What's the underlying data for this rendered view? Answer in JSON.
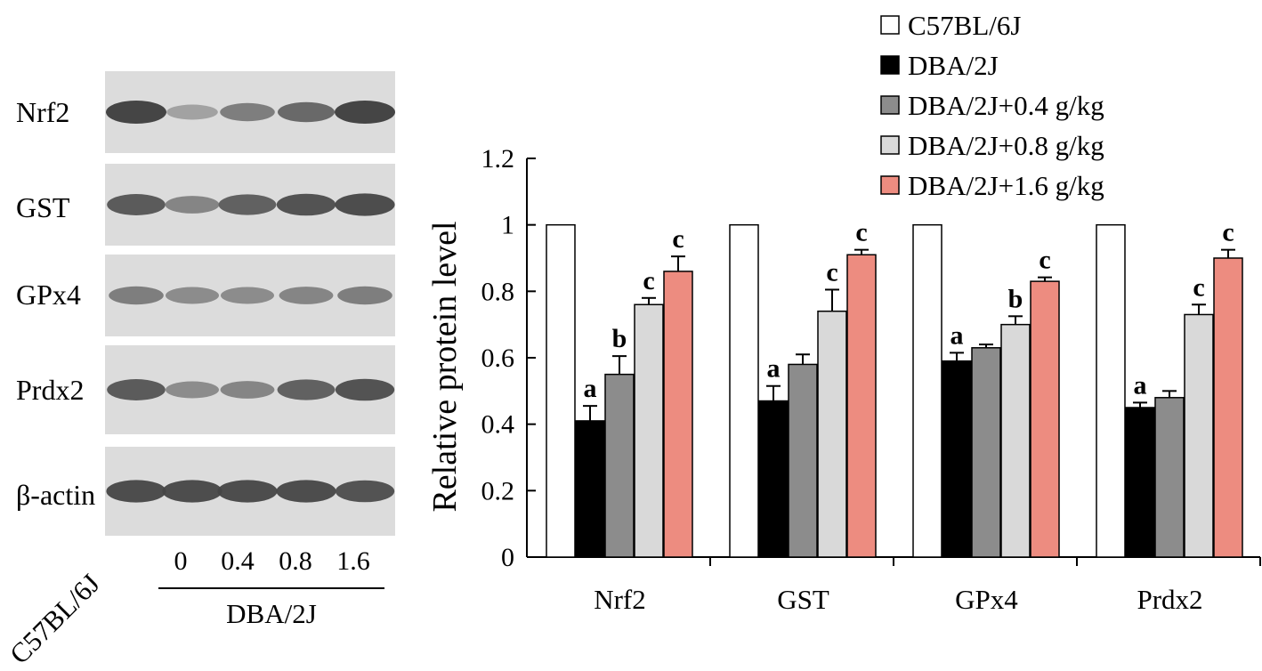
{
  "blots": {
    "rows": [
      {
        "label": "Nrf2",
        "intensity": [
          1.0,
          0.35,
          0.6,
          0.75,
          1.0
        ]
      },
      {
        "label": "GST",
        "intensity": [
          0.85,
          0.55,
          0.8,
          0.9,
          0.95
        ]
      },
      {
        "label": "GPx4",
        "intensity": [
          0.6,
          0.5,
          0.5,
          0.55,
          0.6
        ]
      },
      {
        "label": "Prdx2",
        "intensity": [
          0.85,
          0.5,
          0.55,
          0.8,
          0.9
        ]
      },
      {
        "label": "β-actin",
        "intensity": [
          0.95,
          0.95,
          0.95,
          0.95,
          0.9
        ]
      }
    ],
    "strain_label": "C57BL/6J",
    "lane_labels": [
      "0",
      "0.4",
      "0.8",
      "1.6"
    ],
    "group_label": "DBA/2J"
  },
  "chart_data": {
    "type": "bar",
    "ylabel": "Relative protein level",
    "ylim": [
      0,
      1.2
    ],
    "yticks": [
      0,
      0.2,
      0.4,
      0.6,
      0.8,
      1,
      1.2
    ],
    "ytick_labels": [
      "0",
      "0.2",
      "0.4",
      "0.6",
      "0.8",
      "1",
      "1.2"
    ],
    "categories": [
      "Nrf2",
      "GST",
      "GPx4",
      "Prdx2"
    ],
    "legend_position": "top-right",
    "series": [
      {
        "name": "C57BL/6J",
        "color": "#ffffff",
        "values": [
          1.0,
          1.0,
          1.0,
          1.0
        ],
        "errors": [
          0,
          0,
          0,
          0
        ],
        "sig": [
          "",
          "",
          "",
          ""
        ]
      },
      {
        "name": "DBA/2J",
        "color": "#000000",
        "values": [
          0.41,
          0.47,
          0.59,
          0.45
        ],
        "errors": [
          0.045,
          0.045,
          0.025,
          0.015
        ],
        "sig": [
          "a",
          "a",
          "a",
          "a"
        ]
      },
      {
        "name": "DBA/2J+0.4 g/kg",
        "color": "#8c8c8c",
        "values": [
          0.55,
          0.58,
          0.63,
          0.48
        ],
        "errors": [
          0.055,
          0.03,
          0.01,
          0.02
        ],
        "sig": [
          "b",
          "",
          "",
          ""
        ]
      },
      {
        "name": "DBA/2J+0.8 g/kg",
        "color": "#d9d9d9",
        "values": [
          0.76,
          0.74,
          0.7,
          0.73
        ],
        "errors": [
          0.02,
          0.065,
          0.025,
          0.03
        ],
        "sig": [
          "c",
          "c",
          "b",
          "c"
        ]
      },
      {
        "name": "DBA/2J+1.6 g/kg",
        "color": "#ed8c80",
        "values": [
          0.86,
          0.91,
          0.83,
          0.9
        ],
        "errors": [
          0.045,
          0.015,
          0.012,
          0.025
        ],
        "sig": [
          "c",
          "c",
          "c",
          "c"
        ]
      }
    ]
  }
}
